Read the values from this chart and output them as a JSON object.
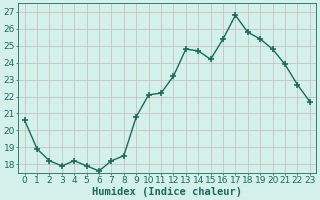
{
  "x": [
    0,
    1,
    2,
    3,
    4,
    5,
    6,
    7,
    8,
    9,
    10,
    11,
    12,
    13,
    14,
    15,
    16,
    17,
    18,
    19,
    20,
    21,
    22,
    23
  ],
  "y": [
    20.6,
    18.9,
    18.2,
    17.9,
    18.2,
    17.9,
    17.6,
    18.2,
    18.5,
    20.8,
    22.1,
    22.2,
    23.2,
    24.8,
    24.7,
    24.2,
    25.4,
    26.8,
    25.8,
    25.4,
    24.8,
    23.9,
    22.7,
    21.7
  ],
  "line_color": "#1a6b5a",
  "marker": "+",
  "marker_size": 5,
  "marker_linewidth": 1.2,
  "bg_color": "#d4f0eb",
  "grid_color": "#c8b8b8",
  "axis_color": "#1a6b5a",
  "xlabel": "Humidex (Indice chaleur)",
  "xlabel_color": "#1a6b5a",
  "ylim": [
    17.5,
    27.5
  ],
  "yticks": [
    18,
    19,
    20,
    21,
    22,
    23,
    24,
    25,
    26,
    27
  ],
  "xticks": [
    0,
    1,
    2,
    3,
    4,
    5,
    6,
    7,
    8,
    9,
    10,
    11,
    12,
    13,
    14,
    15,
    16,
    17,
    18,
    19,
    20,
    21,
    22,
    23
  ],
  "tick_label_fontsize": 6.5,
  "xlabel_fontsize": 7.5,
  "line_width": 1.0
}
